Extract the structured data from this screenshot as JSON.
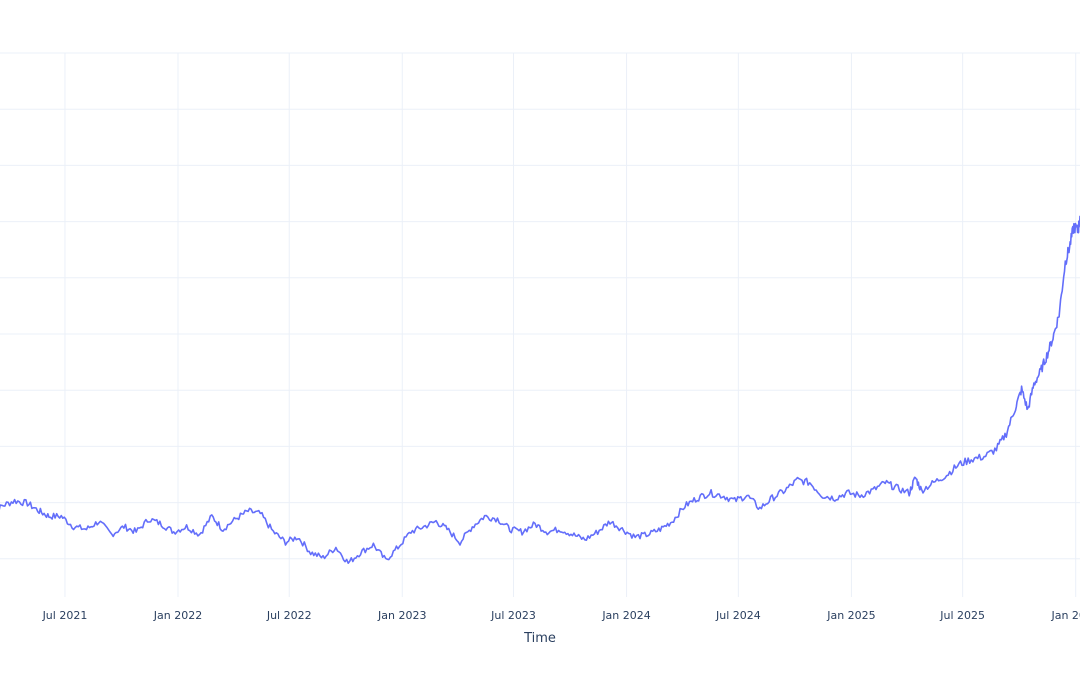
{
  "chart_data": {
    "type": "line",
    "title": "",
    "xlabel": "Time",
    "ylabel": "",
    "grid": true,
    "x_tick_labels": [
      "Jul 2021",
      "Jan 2022",
      "Jul 2022",
      "Jan 2023",
      "Jul 2023",
      "Jan 2024",
      "Jul 2024",
      "Jan 2025",
      "Jul 2025",
      "Jan 2026"
    ],
    "x_ticks": [
      "2021-07-01",
      "2022-01-01",
      "2022-07-01",
      "2023-01-01",
      "2023-07-01",
      "2024-01-01",
      "2024-07-01",
      "2025-01-01",
      "2025-07-01",
      "2026-01-01"
    ],
    "xlim": [
      "2021-03-01",
      "2026-01-08"
    ],
    "ylim": [
      0,
      10
    ],
    "series": [
      {
        "color": "#636efa",
        "x": [
          "2021-03-01",
          "2021-03-20",
          "2021-04-10",
          "2021-05-01",
          "2021-05-20",
          "2021-06-05",
          "2021-06-25",
          "2021-07-15",
          "2021-08-05",
          "2021-08-25",
          "2021-09-15",
          "2021-10-05",
          "2021-10-25",
          "2021-11-15",
          "2021-12-05",
          "2021-12-25",
          "2022-01-15",
          "2022-02-05",
          "2022-02-25",
          "2022-03-15",
          "2022-04-05",
          "2022-04-25",
          "2022-05-15",
          "2022-06-05",
          "2022-06-25",
          "2022-07-15",
          "2022-08-05",
          "2022-08-25",
          "2022-09-15",
          "2022-10-05",
          "2022-10-25",
          "2022-11-15",
          "2022-12-05",
          "2022-12-25",
          "2023-01-15",
          "2023-02-05",
          "2023-02-25",
          "2023-03-15",
          "2023-04-05",
          "2023-04-25",
          "2023-05-15",
          "2023-06-05",
          "2023-06-25",
          "2023-07-15",
          "2023-08-05",
          "2023-08-25",
          "2023-09-15",
          "2023-10-05",
          "2023-10-25",
          "2023-11-15",
          "2023-12-05",
          "2023-12-25",
          "2024-01-15",
          "2024-02-05",
          "2024-02-25",
          "2024-03-15",
          "2024-04-05",
          "2024-04-25",
          "2024-05-15",
          "2024-06-05",
          "2024-06-25",
          "2024-07-15",
          "2024-08-05",
          "2024-08-25",
          "2024-09-15",
          "2024-10-05",
          "2024-10-25",
          "2024-11-15",
          "2024-12-05",
          "2024-12-25",
          "2025-01-15",
          "2025-02-05",
          "2025-02-25",
          "2025-03-15",
          "2025-04-05",
          "2025-04-15",
          "2025-04-25",
          "2025-05-15",
          "2025-06-05",
          "2025-06-25",
          "2025-07-15",
          "2025-08-05",
          "2025-08-25",
          "2025-09-10",
          "2025-09-25",
          "2025-10-05",
          "2025-10-15",
          "2025-10-25",
          "2025-11-05",
          "2025-11-15",
          "2025-11-25",
          "2025-12-05",
          "2025-12-15",
          "2025-12-22",
          "2025-12-29",
          "2026-01-05",
          "2026-01-08"
        ],
        "y": [
          0.35,
          0.6,
          0.7,
          0.65,
          0.5,
          0.4,
          0.4,
          0.2,
          0.15,
          0.3,
          0.05,
          0.2,
          0.1,
          0.35,
          0.25,
          0.1,
          0.2,
          0.05,
          0.4,
          0.15,
          0.35,
          0.5,
          0.45,
          0.1,
          -0.1,
          0.0,
          -0.3,
          -0.4,
          -0.2,
          -0.5,
          -0.3,
          -0.15,
          -0.45,
          -0.2,
          0.1,
          0.2,
          0.3,
          0.15,
          -0.1,
          0.2,
          0.4,
          0.35,
          0.15,
          0.1,
          0.25,
          0.1,
          0.15,
          0.05,
          -0.05,
          0.1,
          0.3,
          0.15,
          0.0,
          0.05,
          0.15,
          0.3,
          0.6,
          0.75,
          0.85,
          0.8,
          0.7,
          0.8,
          0.55,
          0.75,
          0.9,
          1.1,
          1.05,
          0.8,
          0.75,
          0.85,
          0.8,
          0.9,
          1.05,
          0.95,
          0.85,
          1.15,
          0.9,
          1.05,
          1.2,
          1.4,
          1.5,
          1.55,
          1.7,
          2.0,
          2.5,
          2.85,
          2.45,
          2.95,
          3.2,
          3.5,
          3.85,
          4.3,
          5.3,
          5.6,
          6.0,
          5.9,
          6.2
        ]
      }
    ]
  }
}
